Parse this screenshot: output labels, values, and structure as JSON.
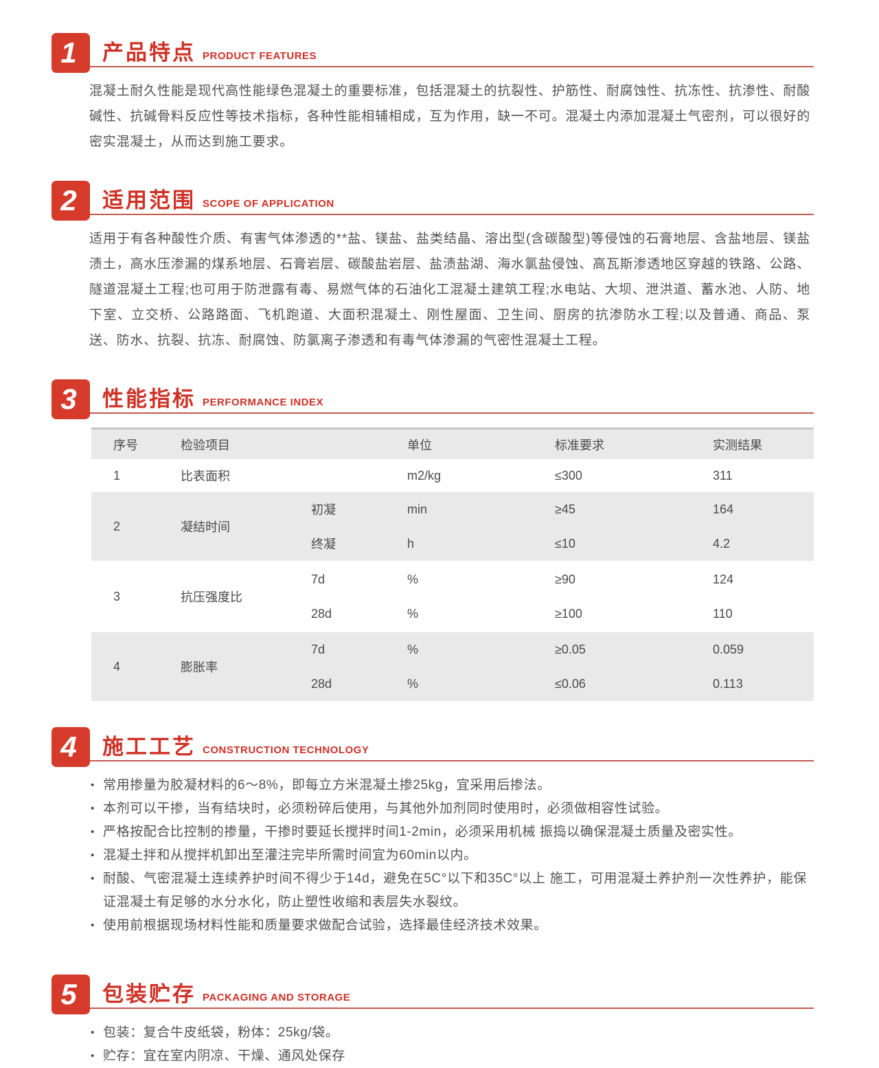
{
  "colors": {
    "accent_red": "#d63a2b",
    "title_red": "#ce3126",
    "underline_red": "#c25a4e",
    "body_text": "#525252",
    "table_shaded_row": "#e9e9e9"
  },
  "sections": [
    {
      "num": "1",
      "title": "产品特点",
      "subtitle": "PRODUCT FEATURES",
      "paragraph": "混凝土耐久性能是现代高性能绿色混凝土的重要标准，包括混凝土的抗裂性、护筋性、耐腐蚀性、抗冻性、抗渗性、耐酸碱性、抗碱骨料反应性等技术指标，各种性能相辅相成，互为作用，缺一不可。混凝土内添加混凝土气密剂，可以很好的密实混凝土，从而达到施工要求。"
    },
    {
      "num": "2",
      "title": "适用范围",
      "subtitle": "SCOPE OF APPLICATION",
      "paragraph": "适用于有各种酸性介质、有害气体渗透的**盐、镁盐、盐类结晶、溶出型(含碳酸型)等侵蚀的石膏地层、含盐地层、镁盐渍土，高水压渗漏的煤系地层、石膏岩层、碳酸盐岩层、盐渍盐湖、海水氯盐侵蚀、高瓦斯渗透地区穿越的铁路、公路、隧道混凝土工程;也可用于防泄露有毒、易燃气体的石油化工混凝土建筑工程;水电站、大坝、泄洪道、蓄水池、人防、地下室、立交桥、公路路面、飞机跑道、大面积混凝土、刚性屋面、卫生间、厨房的抗渗防水工程;以及普通、商品、泵送、防水、抗裂、抗冻、耐腐蚀、防氯离子渗透和有毒气体渗漏的气密性混凝土工程。"
    },
    {
      "num": "3",
      "title": "性能指标",
      "subtitle": "PERFORMANCE INDEX"
    },
    {
      "num": "4",
      "title": "施工工艺",
      "subtitle": "CONSTRUCTION TECHNOLOGY",
      "bullets": [
        "常用掺量为胶凝材料的6～8%，即每立方米混凝土掺25kg，宜采用后掺法。",
        "本剂可以干掺，当有结块时，必须粉碎后使用，与其他外加剂同时使用时，必须做相容性试验。",
        "严格按配合比控制的掺量，干掺时要延长搅拌时间1-2min，必须采用机械 振捣以确保混凝土质量及密实性。",
        "混凝土拌和从搅拌机卸出至灌注完毕所需时间宜为60min以内。",
        "耐酸、气密混凝土连续养护时间不得少于14d，避免在5C°以下和35C°以上 施工，可用混凝土养护剂一次性养护，能保证混凝土有足够的水分水化，防止塑性收缩和表层失水裂纹。",
        "使用前根据现场材料性能和质量要求做配合试验，选择最佳经济技术效果。"
      ]
    },
    {
      "num": "5",
      "title": "包装贮存",
      "subtitle": "PACKAGING AND STORAGE",
      "bullets": [
        "包装：复合牛皮纸袋，粉体：25kg/袋。",
        "贮存：宜在室内阴凉、干燥、通风处保存"
      ]
    }
  ],
  "table": {
    "headers": [
      "序号",
      "检验项目",
      "单位",
      "标准要求",
      "实测结果"
    ],
    "rows": [
      {
        "no": "1",
        "item": "比表面积",
        "shaded": false,
        "subs": [
          {
            "sub": "",
            "unit": "m2/kg",
            "req": "≤300",
            "result": "311"
          }
        ]
      },
      {
        "no": "2",
        "item": "凝结时间",
        "shaded": true,
        "subs": [
          {
            "sub": "初凝",
            "unit": "min",
            "req": "≥45",
            "result": "164"
          },
          {
            "sub": "终凝",
            "unit": "h",
            "req": "≤10",
            "result": "4.2"
          }
        ]
      },
      {
        "no": "3",
        "item": "抗压强度比",
        "shaded": false,
        "subs": [
          {
            "sub": "7d",
            "unit": "%",
            "req": "≥90",
            "result": "124"
          },
          {
            "sub": "28d",
            "unit": "%",
            "req": "≥100",
            "result": "110"
          }
        ]
      },
      {
        "no": "4",
        "item": "膨胀率",
        "shaded": true,
        "subs": [
          {
            "sub": "7d",
            "unit": "%",
            "req": "≥0.05",
            "result": "0.059"
          },
          {
            "sub": "28d",
            "unit": "%",
            "req": "≤0.06",
            "result": "0.113"
          }
        ]
      }
    ]
  }
}
